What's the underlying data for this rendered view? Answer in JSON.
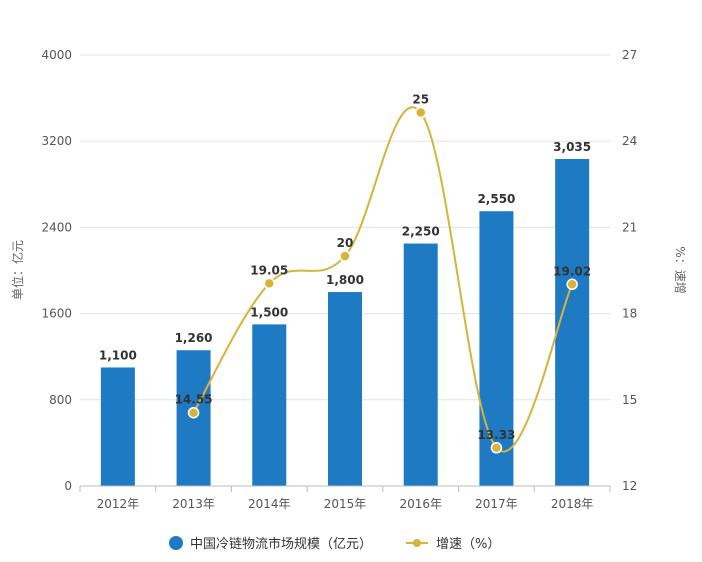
{
  "colors": {
    "bar": "#1f7ac4",
    "line": "#d9b23a",
    "marker_fill": "#ffffff"
  },
  "chart_data": {
    "type": "bar",
    "categories": [
      "2012年",
      "2013年",
      "2014年",
      "2015年",
      "2016年",
      "2017年",
      "2018年"
    ],
    "series": [
      {
        "name": "中国冷链物流市场规模（亿元）",
        "type": "bar",
        "axis": "left",
        "values": [
          1100,
          1260,
          1500,
          1800,
          2250,
          2550,
          3035
        ],
        "labels": [
          "1,100",
          "1,260",
          "1,500",
          "1,800",
          "2,250",
          "2,550",
          "3,035"
        ]
      },
      {
        "name": "增速（%）",
        "type": "line",
        "axis": "right",
        "values": [
          null,
          14.55,
          19.05,
          20,
          25,
          13.33,
          19.02
        ],
        "labels": [
          "",
          "14.55",
          "19.05",
          "20",
          "25",
          "13.33",
          "19.02"
        ]
      }
    ],
    "ylabel": "单位：亿元",
    "y2label": "%：速增",
    "ylim": [
      0,
      4000
    ],
    "yticks": [
      "0",
      "800",
      "1600",
      "2400",
      "3200",
      "4000"
    ],
    "y2lim": [
      12,
      27
    ],
    "y2ticks": [
      "12",
      "15",
      "18",
      "21",
      "24",
      "27"
    ],
    "grid": true,
    "legend": "bottom"
  }
}
